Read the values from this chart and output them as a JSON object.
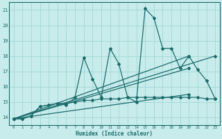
{
  "xlabel": "Humidex (Indice chaleur)",
  "bg_color": "#c8ecec",
  "grid_color": "#a8d8d8",
  "line_color": "#1a6b6b",
  "xlim": [
    -0.5,
    23.5
  ],
  "ylim": [
    13.5,
    21.5
  ],
  "yticks": [
    14,
    15,
    16,
    17,
    18,
    19,
    20,
    21
  ],
  "xticks": [
    0,
    1,
    2,
    3,
    4,
    5,
    6,
    7,
    8,
    9,
    10,
    11,
    12,
    13,
    14,
    15,
    16,
    17,
    18,
    19,
    20,
    21,
    22,
    23
  ],
  "line_main_x": [
    0,
    1,
    2,
    3,
    4,
    5,
    6,
    7,
    8,
    9,
    10,
    11,
    12,
    13,
    14,
    15,
    16,
    17,
    18,
    19,
    20,
    21,
    22,
    23
  ],
  "line_main_y": [
    13.9,
    13.9,
    14.1,
    14.7,
    14.8,
    14.9,
    14.8,
    15.3,
    17.9,
    16.5,
    15.3,
    18.5,
    17.5,
    15.3,
    15.0,
    21.1,
    20.5,
    18.5,
    18.5,
    17.2,
    18.0,
    17.1,
    16.4,
    15.2
  ],
  "line_trend1_x": [
    0,
    23
  ],
  "line_trend1_y": [
    13.9,
    18.0
  ],
  "line_trend2_x": [
    0,
    20
  ],
  "line_trend2_y": [
    13.9,
    18.0
  ],
  "line_trend3_x": [
    0,
    20
  ],
  "line_trend3_y": [
    13.9,
    17.2
  ],
  "line_trend4_x": [
    0,
    20
  ],
  "line_trend4_y": [
    13.9,
    15.5
  ],
  "line_flat_x": [
    0,
    1,
    2,
    3,
    4,
    5,
    6,
    7,
    8,
    9,
    10,
    11,
    12,
    13,
    14,
    15,
    16,
    17,
    18,
    19,
    20,
    21,
    22,
    23
  ],
  "line_flat_y": [
    13.9,
    13.9,
    14.1,
    14.7,
    14.8,
    14.9,
    14.9,
    15.0,
    15.1,
    15.1,
    15.2,
    15.2,
    15.2,
    15.3,
    15.3,
    15.3,
    15.3,
    15.3,
    15.3,
    15.3,
    15.3,
    15.3,
    15.2,
    15.2
  ]
}
